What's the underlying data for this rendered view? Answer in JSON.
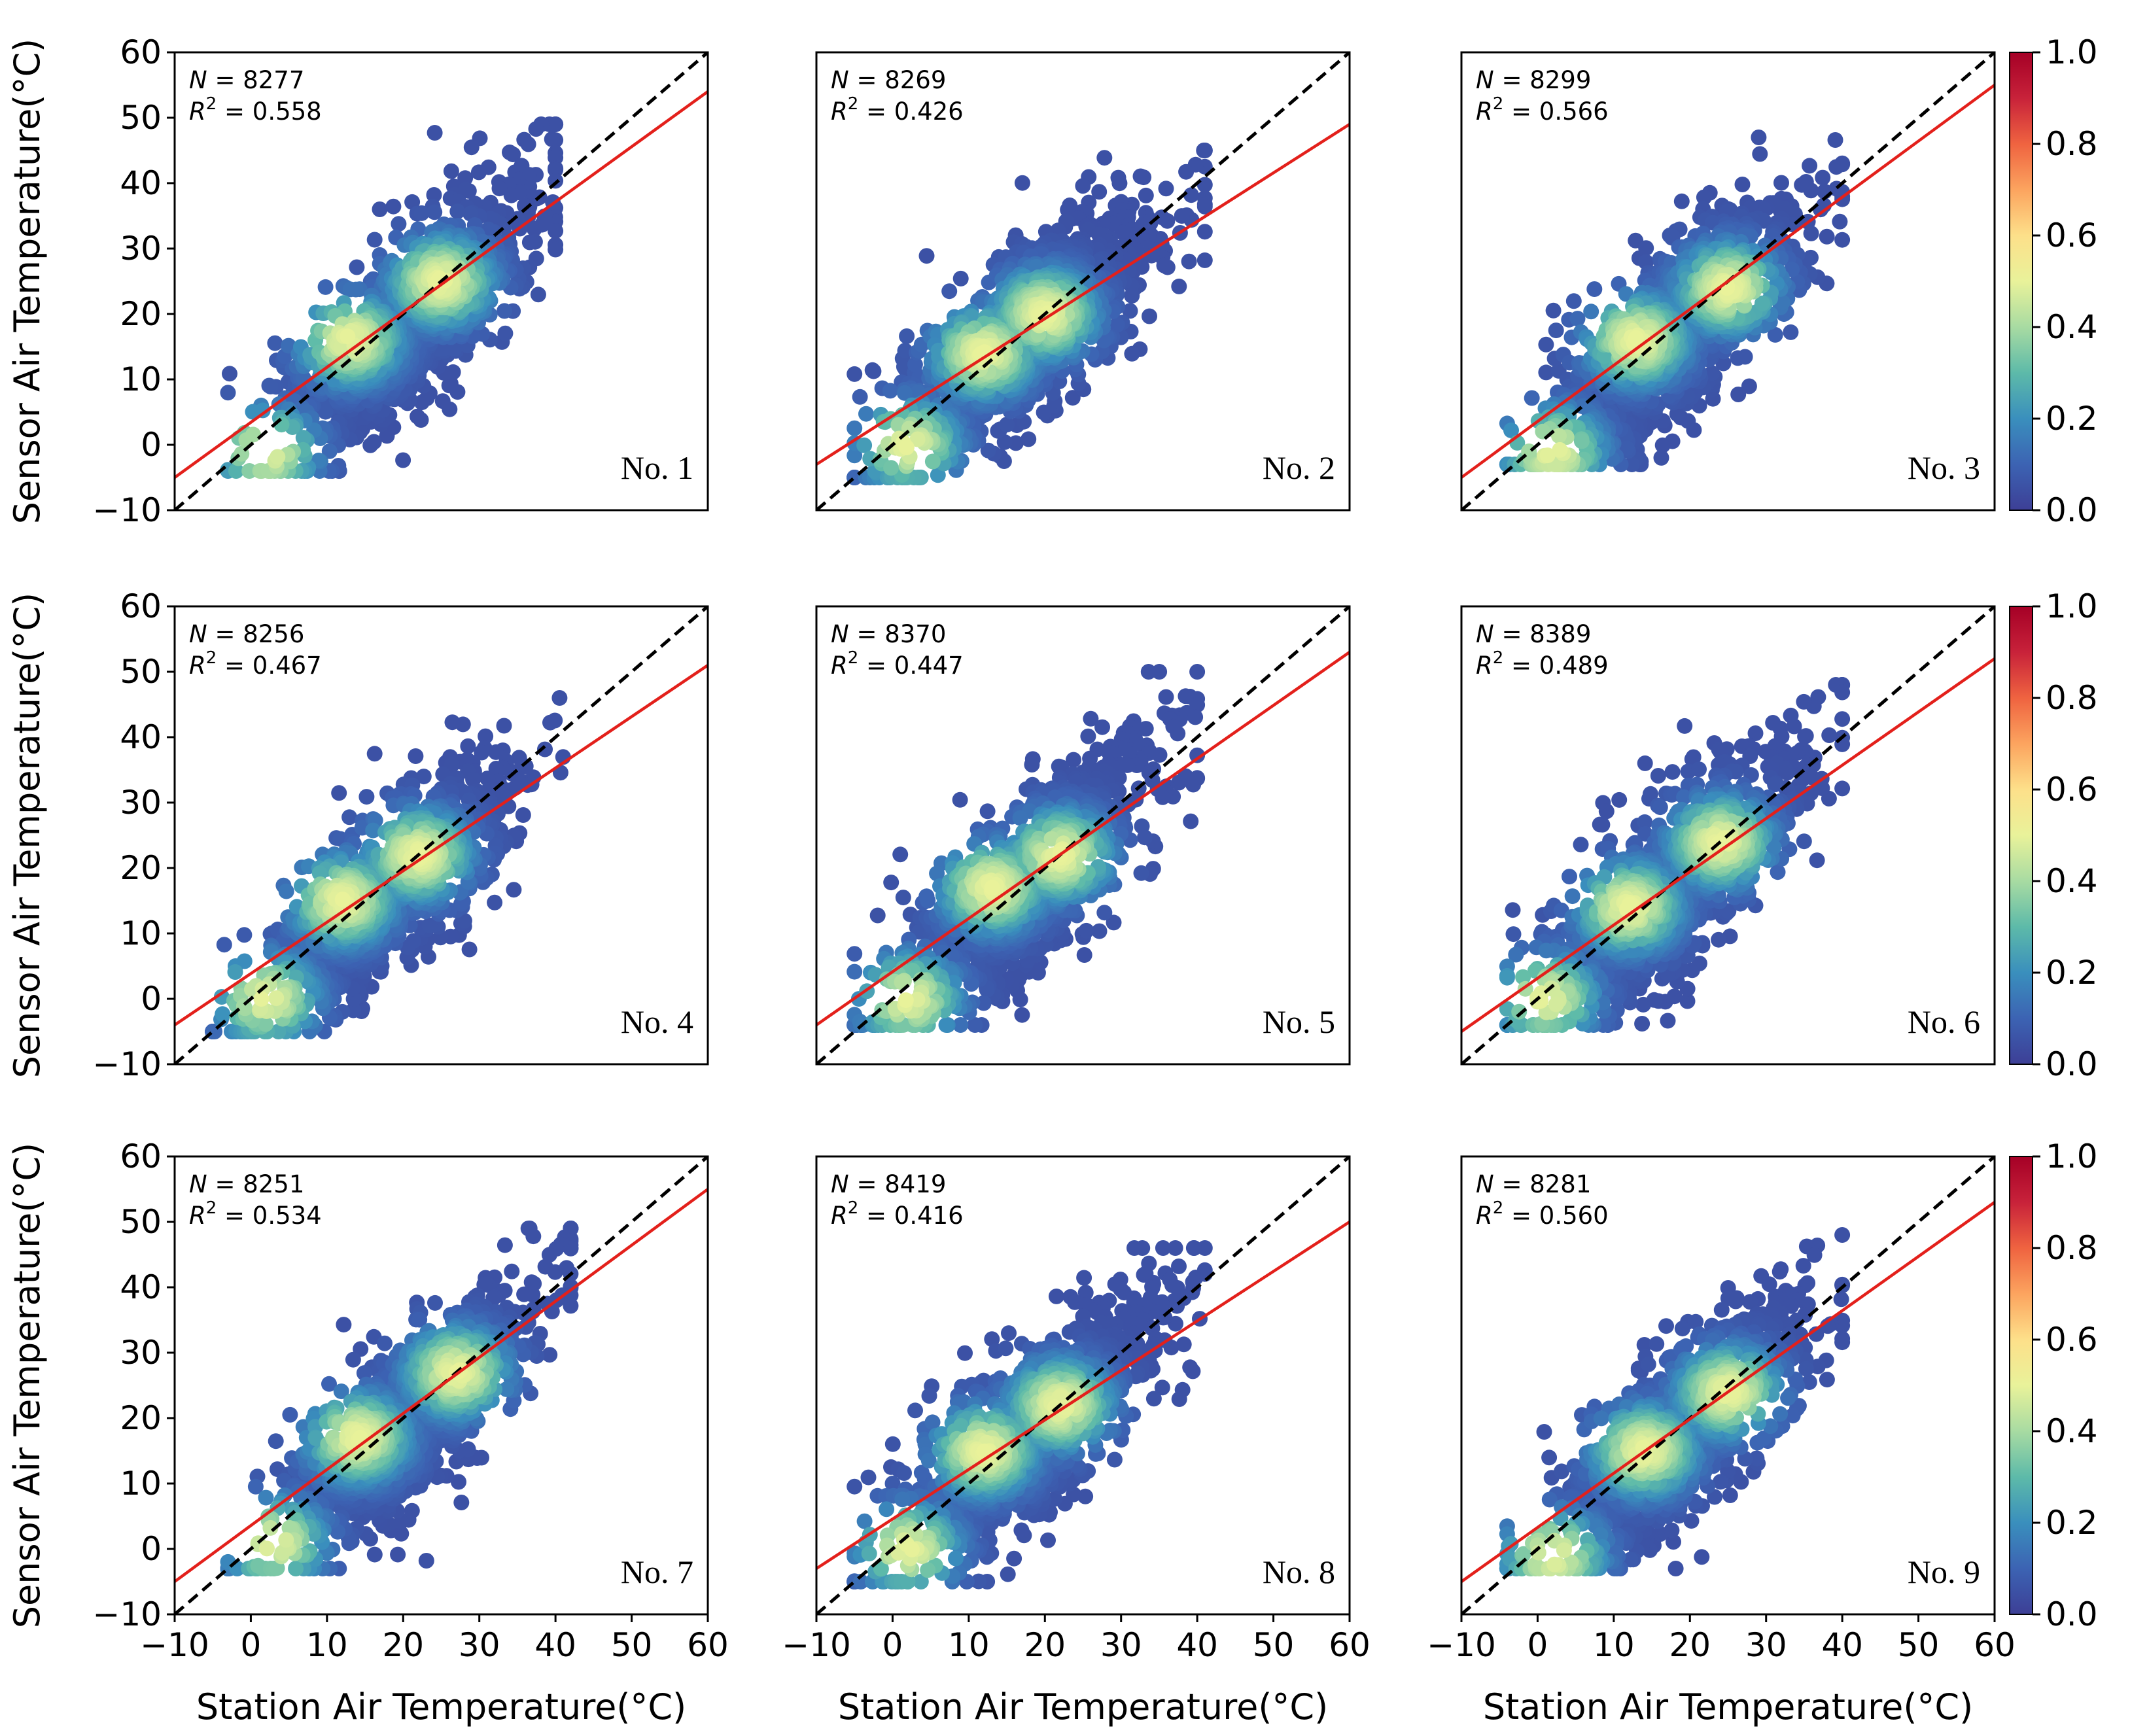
{
  "figure": {
    "ylabel": "Sensor Air Temperature(°C)",
    "xlabel": "Station Air Temperature(°C)",
    "stat_n_symbol": "N",
    "stat_r2_symbol": "R",
    "stat_r2_exp": "2",
    "stat_equals": " = ",
    "colors": {
      "identity_line": "#000000",
      "fit_line": "#e3201b",
      "colormap": [
        "#3d3f96",
        "#3c63b3",
        "#3a8fbd",
        "#5dbaa9",
        "#a8dba2",
        "#e9f29a",
        "#fde08a",
        "#fca45f",
        "#ef6340",
        "#c8223a",
        "#a50026"
      ]
    },
    "colorbar_ticks": [
      "0.0",
      "0.2",
      "0.4",
      "0.6",
      "0.8",
      "1.0"
    ]
  },
  "chart_data": [
    {
      "type": "scatter",
      "label": "No. 1",
      "n": "8277",
      "r2": "0.558",
      "fit_line": [
        [
          -10,
          -5
        ],
        [
          60,
          54
        ]
      ],
      "cluster": {
        "center": [
          20,
          18
        ],
        "x_range": [
          -3,
          40
        ],
        "y_range": [
          -4,
          49
        ],
        "dense": [
          [
            13,
            16
          ],
          [
            25,
            25
          ],
          [
            2,
            -1
          ]
        ]
      },
      "xlim": [
        -10,
        60
      ],
      "ylim": [
        -10,
        60
      ],
      "xticks": [
        "−10",
        "0",
        "10",
        "20",
        "30",
        "40",
        "50",
        "60"
      ],
      "yticks": [
        "−10",
        "0",
        "10",
        "20",
        "30",
        "40",
        "50",
        "60"
      ],
      "identity_line": [
        [
          -10,
          -10
        ],
        [
          60,
          60
        ]
      ]
    },
    {
      "type": "scatter",
      "label": "No. 2",
      "n": "8269",
      "r2": "0.426",
      "fit_line": [
        [
          -10,
          -3
        ],
        [
          60,
          49
        ]
      ],
      "cluster": {
        "center": [
          17,
          17
        ],
        "x_range": [
          -5,
          41
        ],
        "y_range": [
          -5,
          45
        ],
        "dense": [
          [
            12,
            14
          ],
          [
            20,
            20
          ],
          [
            2,
            0
          ]
        ]
      },
      "xlim": [
        -10,
        60
      ],
      "ylim": [
        -10,
        60
      ],
      "xticks": [
        "−10",
        "0",
        "10",
        "20",
        "30",
        "40",
        "50",
        "60"
      ],
      "yticks": [
        "−10",
        "0",
        "10",
        "20",
        "30",
        "40",
        "50",
        "60"
      ],
      "identity_line": [
        [
          -10,
          -10
        ],
        [
          60,
          60
        ]
      ]
    },
    {
      "type": "scatter",
      "label": "No. 3",
      "n": "8299",
      "r2": "0.566",
      "fit_line": [
        [
          -10,
          -5
        ],
        [
          60,
          55
        ]
      ],
      "cluster": {
        "center": [
          18,
          17
        ],
        "x_range": [
          -4,
          40
        ],
        "y_range": [
          -3,
          47
        ],
        "dense": [
          [
            13,
            16
          ],
          [
            25,
            24
          ],
          [
            2,
            -1
          ]
        ]
      },
      "xlim": [
        -10,
        60
      ],
      "ylim": [
        -10,
        60
      ],
      "xticks": [
        "−10",
        "0",
        "10",
        "20",
        "30",
        "40",
        "50",
        "60"
      ],
      "yticks": [
        "−10",
        "0",
        "10",
        "20",
        "30",
        "40",
        "50",
        "60"
      ],
      "identity_line": [
        [
          -10,
          -10
        ],
        [
          60,
          60
        ]
      ]
    },
    {
      "type": "scatter",
      "label": "No. 4",
      "n": "8256",
      "r2": "0.467",
      "fit_line": [
        [
          -10,
          -4
        ],
        [
          60,
          51
        ]
      ],
      "cluster": {
        "center": [
          17,
          16
        ],
        "x_range": [
          -5,
          41
        ],
        "y_range": [
          -5,
          46
        ],
        "dense": [
          [
            12,
            15
          ],
          [
            22,
            22
          ],
          [
            2,
            0
          ]
        ]
      },
      "xlim": [
        -10,
        60
      ],
      "ylim": [
        -10,
        60
      ],
      "xticks": [
        "−10",
        "0",
        "10",
        "20",
        "30",
        "40",
        "50",
        "60"
      ],
      "yticks": [
        "−10",
        "0",
        "10",
        "20",
        "30",
        "40",
        "50",
        "60"
      ],
      "identity_line": [
        [
          -10,
          -10
        ],
        [
          60,
          60
        ]
      ]
    },
    {
      "type": "scatter",
      "label": "No. 5",
      "n": "8370",
      "r2": "0.447",
      "fit_line": [
        [
          -10,
          -4
        ],
        [
          60,
          53
        ]
      ],
      "cluster": {
        "center": [
          17,
          17
        ],
        "x_range": [
          -5,
          40
        ],
        "y_range": [
          -4,
          50
        ],
        "dense": [
          [
            13,
            17
          ],
          [
            22,
            22
          ],
          [
            2,
            0
          ]
        ]
      },
      "xlim": [
        -10,
        60
      ],
      "ylim": [
        -10,
        60
      ],
      "xticks": [
        "−10",
        "0",
        "10",
        "20",
        "30",
        "40",
        "50",
        "60"
      ],
      "yticks": [
        "−10",
        "0",
        "10",
        "20",
        "30",
        "40",
        "50",
        "60"
      ],
      "identity_line": [
        [
          -10,
          -10
        ],
        [
          60,
          60
        ]
      ]
    },
    {
      "type": "scatter",
      "label": "No. 6",
      "n": "8389",
      "r2": "0.489",
      "fit_line": [
        [
          -10,
          -5
        ],
        [
          60,
          52
        ]
      ],
      "cluster": {
        "center": [
          17,
          17
        ],
        "x_range": [
          -4,
          40
        ],
        "y_range": [
          -4,
          48
        ],
        "dense": [
          [
            12,
            14
          ],
          [
            24,
            24
          ],
          [
            1,
            0
          ]
        ]
      },
      "xlim": [
        -10,
        60
      ],
      "ylim": [
        -10,
        60
      ],
      "xticks": [
        "−10",
        "0",
        "10",
        "20",
        "30",
        "40",
        "50",
        "60"
      ],
      "yticks": [
        "−10",
        "0",
        "10",
        "20",
        "30",
        "40",
        "50",
        "60"
      ],
      "identity_line": [
        [
          -10,
          -10
        ],
        [
          60,
          60
        ]
      ]
    },
    {
      "type": "scatter",
      "label": "No. 7",
      "n": "8251",
      "r2": "0.534",
      "fit_line": [
        [
          -10,
          -5
        ],
        [
          60,
          55
        ]
      ],
      "cluster": {
        "center": [
          20,
          19
        ],
        "x_range": [
          -3,
          42
        ],
        "y_range": [
          -3,
          49
        ],
        "dense": [
          [
            14,
            17
          ],
          [
            27,
            27
          ],
          [
            3,
            1
          ]
        ]
      },
      "xlim": [
        -10,
        60
      ],
      "ylim": [
        -10,
        60
      ],
      "xticks": [
        "−10",
        "0",
        "10",
        "20",
        "30",
        "40",
        "50",
        "60"
      ],
      "yticks": [
        "−10",
        "0",
        "10",
        "20",
        "30",
        "40",
        "50",
        "60"
      ],
      "identity_line": [
        [
          -10,
          -10
        ],
        [
          60,
          60
        ]
      ]
    },
    {
      "type": "scatter",
      "label": "No. 8",
      "n": "8419",
      "r2": "0.416",
      "fit_line": [
        [
          -10,
          -3
        ],
        [
          60,
          50
        ]
      ],
      "cluster": {
        "center": [
          17,
          17
        ],
        "x_range": [
          -5,
          41
        ],
        "y_range": [
          -5,
          46
        ],
        "dense": [
          [
            12,
            15
          ],
          [
            22,
            22
          ],
          [
            2,
            0
          ]
        ]
      },
      "xlim": [
        -10,
        60
      ],
      "ylim": [
        -10,
        60
      ],
      "xticks": [
        "−10",
        "0",
        "10",
        "20",
        "30",
        "40",
        "50",
        "60"
      ],
      "yticks": [
        "−10",
        "0",
        "10",
        "20",
        "30",
        "40",
        "50",
        "60"
      ],
      "identity_line": [
        [
          -10,
          -10
        ],
        [
          60,
          60
        ]
      ]
    },
    {
      "type": "scatter",
      "label": "No. 9",
      "n": "8281",
      "r2": "0.560",
      "fit_line": [
        [
          -10,
          -5
        ],
        [
          60,
          53
        ]
      ],
      "cluster": {
        "center": [
          18,
          17
        ],
        "x_range": [
          -4,
          40
        ],
        "y_range": [
          -3,
          48
        ],
        "dense": [
          [
            14,
            15
          ],
          [
            25,
            24
          ],
          [
            2,
            -1
          ]
        ]
      },
      "xlim": [
        -10,
        60
      ],
      "ylim": [
        -10,
        60
      ],
      "xticks": [
        "−10",
        "0",
        "10",
        "20",
        "30",
        "40",
        "50",
        "60"
      ],
      "yticks": [
        "−10",
        "0",
        "10",
        "20",
        "30",
        "40",
        "50",
        "60"
      ],
      "identity_line": [
        [
          -10,
          -10
        ],
        [
          60,
          60
        ]
      ]
    }
  ]
}
